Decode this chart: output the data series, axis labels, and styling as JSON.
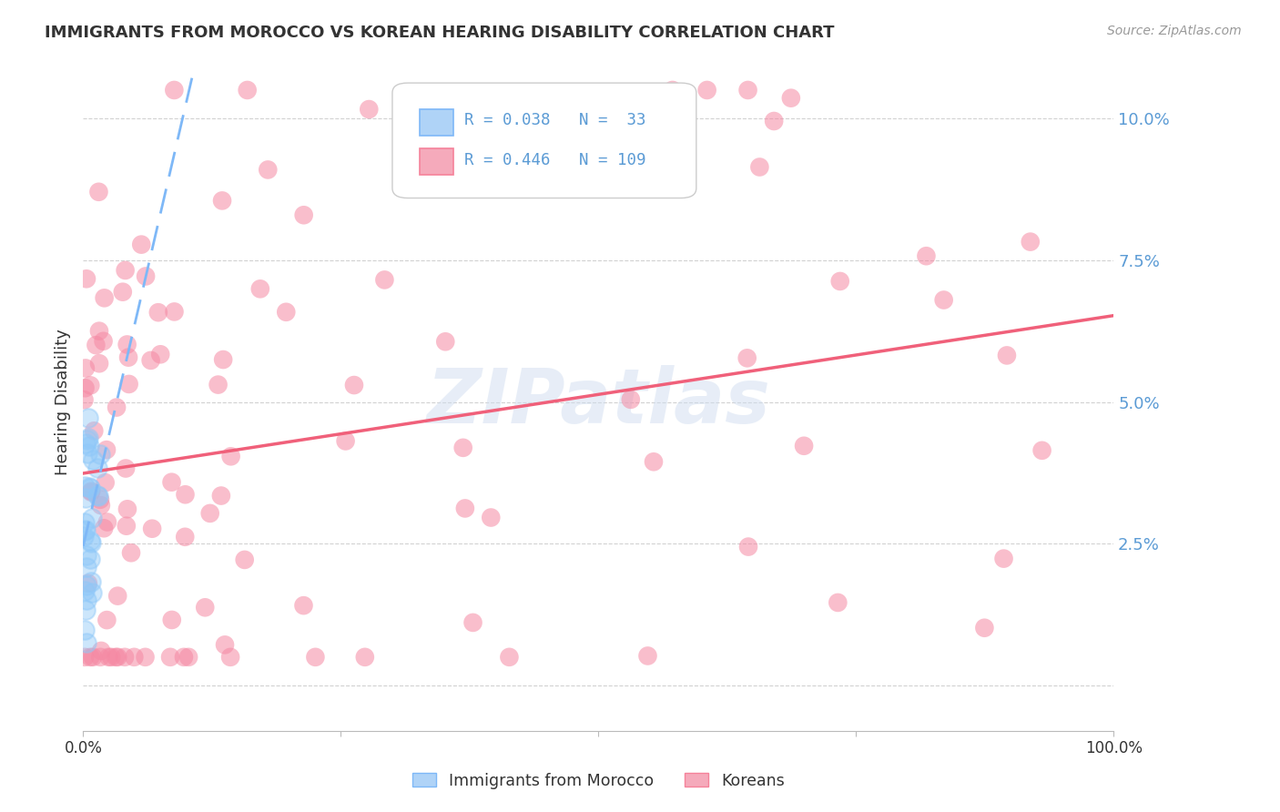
{
  "title": "IMMIGRANTS FROM MOROCCO VS KOREAN HEARING DISABILITY CORRELATION CHART",
  "source": "Source: ZipAtlas.com",
  "ylabel": "Hearing Disability",
  "watermark": "ZIPatlas",
  "legend_entries": [
    {
      "label": "Immigrants from Morocco",
      "R": 0.038,
      "N": 33,
      "dot_color": "#8fc8f8",
      "line_color": "#7eb8f7",
      "line_style": "dashed"
    },
    {
      "label": "Koreans",
      "R": 0.446,
      "N": 109,
      "dot_color": "#f589a3",
      "line_color": "#f0607a",
      "line_style": "solid"
    }
  ],
  "yticks": [
    0.0,
    0.025,
    0.05,
    0.075,
    0.1
  ],
  "ytick_labels": [
    "",
    "2.5%",
    "5.0%",
    "7.5%",
    "10.0%"
  ],
  "xtick_positions": [
    0.0,
    0.25,
    0.5,
    0.75,
    1.0
  ],
  "xtick_labels": [
    "0.0%",
    "",
    "",
    "",
    "100.0%"
  ],
  "xlim": [
    0.0,
    1.0
  ],
  "ylim": [
    -0.008,
    0.108
  ],
  "background_color": "#ffffff",
  "grid_color": "#cccccc",
  "axis_label_color": "#5b9bd5",
  "title_color": "#333333",
  "title_fontsize": 13,
  "legend_box_color": "#cccccc",
  "morocco_sq_face": "#afd3f7",
  "morocco_sq_edge": "#7eb8f7",
  "korean_sq_face": "#f5aabb",
  "korean_sq_edge": "#f5829a"
}
